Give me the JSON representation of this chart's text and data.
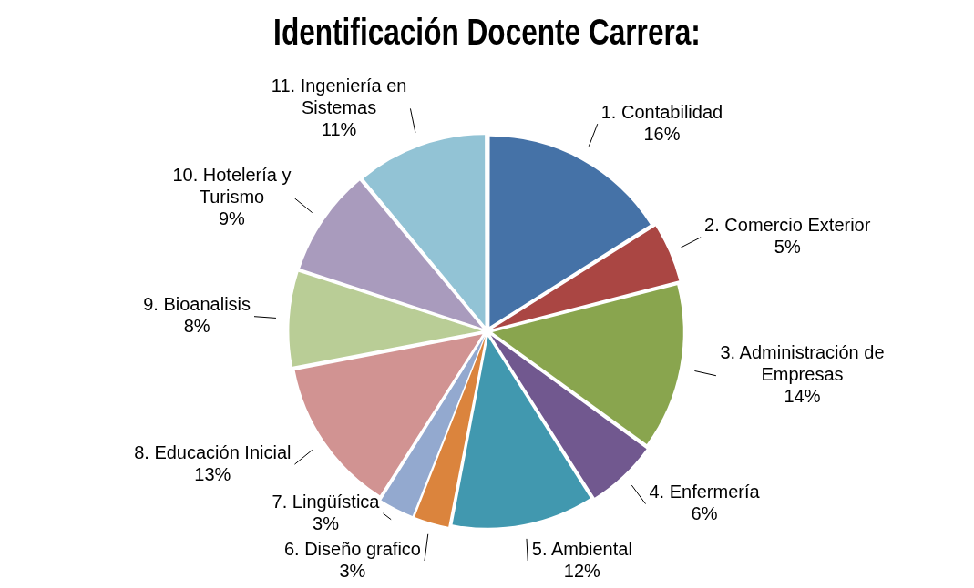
{
  "chart_data": {
    "type": "pie",
    "title": "Identificación Docente Carrera:",
    "categories": [
      "1.  Contabilidad",
      "2.  Comercio Exterior",
      "3.  Administración de Empresas",
      "4.  Enfermería",
      "5.  Ambiental",
      "6.  Diseño grafico",
      "7.  Lingüística",
      "8.  Educación Inicial",
      "9.  Bioanalisis",
      "10. Hotelería y Turismo",
      "11. Ingeniería en Sistemas"
    ],
    "values": [
      16,
      5,
      14,
      6,
      12,
      3,
      3,
      13,
      8,
      9,
      11
    ],
    "value_labels": [
      "16%",
      "5%",
      "14%",
      "6%",
      "12%",
      "3%",
      "3%",
      "13%",
      "8%",
      "9%",
      "11%"
    ],
    "colors": [
      "#4572a7",
      "#aa4643",
      "#89a54e",
      "#71588f",
      "#4198af",
      "#db843d",
      "#93a9cf",
      "#d19392",
      "#b9cd96",
      "#a99bbd",
      "#92c3d5"
    ],
    "legend": false
  }
}
